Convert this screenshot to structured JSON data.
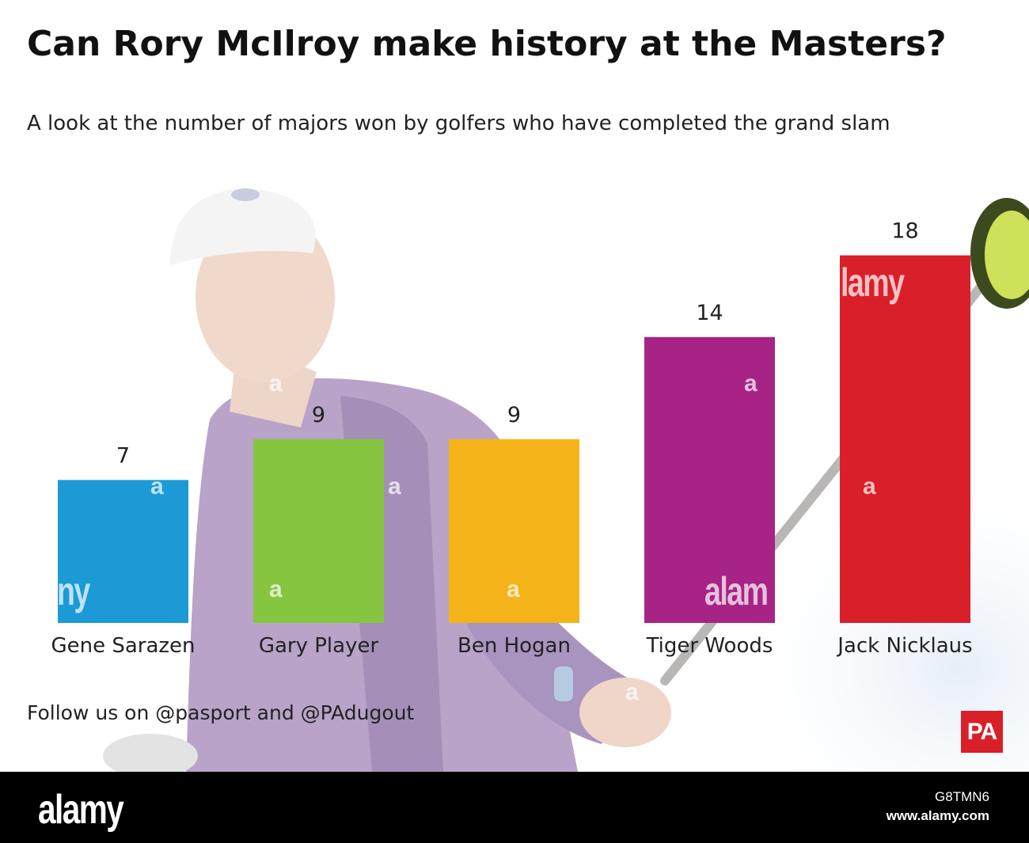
{
  "header": {
    "title": "Can Rory McIlroy make history at the Masters?",
    "subtitle": "A look at the number of majors won by golfers who have completed the grand slam"
  },
  "chart_data": {
    "type": "bar",
    "categories": [
      "Gene Sarazen",
      "Gary Player",
      "Ben Hogan",
      "Tiger Woods",
      "Jack Nicklaus"
    ],
    "values": [
      7,
      9,
      9,
      14,
      18
    ],
    "data_labels": [
      "7",
      "9",
      "9",
      "14",
      "18"
    ],
    "colors": [
      "#1b9ad6",
      "#86c540",
      "#f5b31a",
      "#a72385",
      "#d9202a"
    ],
    "ylim": [
      0,
      18
    ],
    "grid": false,
    "legend": "none"
  },
  "footer": {
    "follow_text": "Follow us on @pasport and @PAdugout",
    "logo_text": "PA"
  },
  "watermark": {
    "brand": "alamy",
    "fragment_letter": "a",
    "fragment_ny": "ny",
    "fragment_alam": "alam",
    "fragment_lamy": "lamy",
    "image_id": "G8TMN6",
    "url": "www.alamy.com"
  }
}
